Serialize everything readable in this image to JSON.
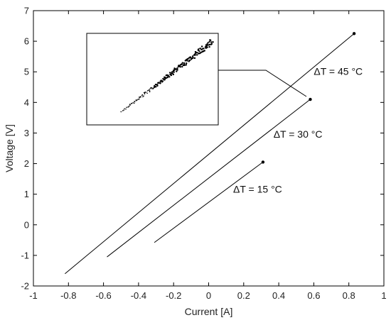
{
  "chart_data": {
    "type": "line",
    "title": "",
    "xlabel": "Current [A]",
    "ylabel": "Voltage [V]",
    "xlim": [
      -1,
      1
    ],
    "ylim": [
      -2,
      7
    ],
    "xticks": [
      "-1",
      "-0.8",
      "-0.6",
      "-0.4",
      "-0.2",
      "0",
      "0.2",
      "0.4",
      "0.6",
      "0.8",
      "1"
    ],
    "yticks": [
      "-2",
      "-1",
      "0",
      "1",
      "2",
      "3",
      "4",
      "5",
      "6",
      "7"
    ],
    "grid": false,
    "legend": "none",
    "line_color": "#000000",
    "series": [
      {
        "x": [
          -0.82,
          0.83
        ],
        "y": [
          -1.6,
          6.25
        ]
      },
      {
        "x": [
          -0.58,
          0.58
        ],
        "y": [
          -1.05,
          4.1
        ]
      },
      {
        "x": [
          -0.31,
          0.31
        ],
        "y": [
          -0.58,
          2.05
        ]
      }
    ],
    "annotations": [
      {
        "text": "ΔT = 45 °C",
        "x": 0.6,
        "y": 4.9
      },
      {
        "text": "ΔT = 30 °C",
        "x": 0.37,
        "y": 2.85
      },
      {
        "text": "ΔT = 15 °C",
        "x": 0.14,
        "y": 1.05
      }
    ],
    "inset": {
      "description": "zoomed scatter of measured points",
      "xlim": [
        -0.85,
        0.05
      ],
      "ylim": [
        3.0,
        6.3
      ],
      "points_from": [
        -0.62,
        3.4
      ],
      "points_to": [
        0.03,
        6.1
      ],
      "n_points": 180,
      "noise": 0.08,
      "color": "#000000"
    }
  }
}
